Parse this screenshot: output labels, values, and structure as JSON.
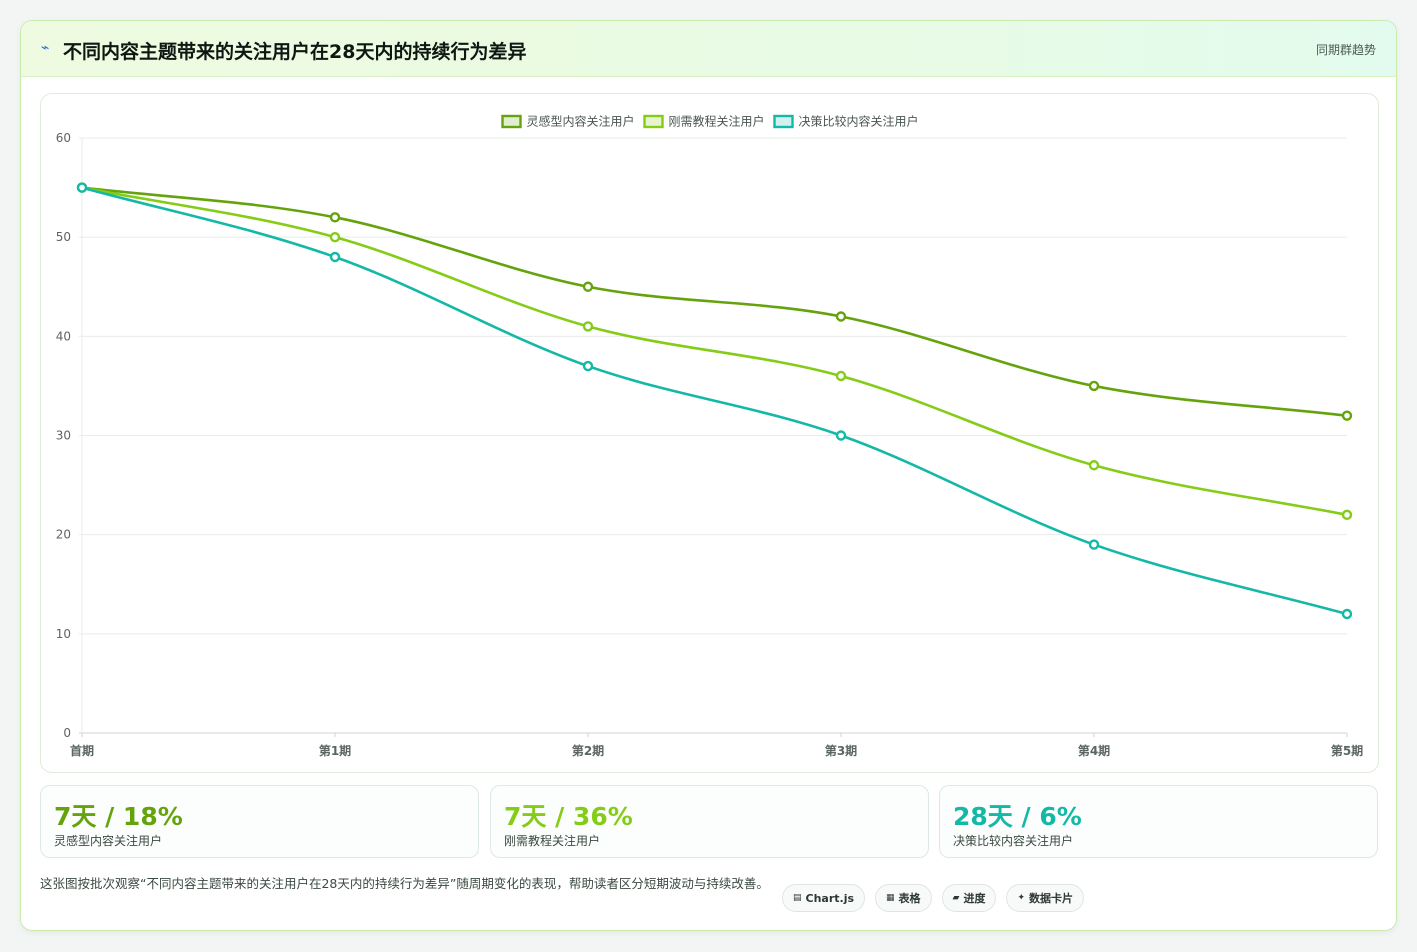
{
  "header": {
    "title_icon": "trend-spark-icon",
    "title_glyph": "⌁",
    "title": "不同内容主题带来的关注用户在28天内的持续行为差异",
    "tag": "同期群趋势"
  },
  "chart_data": {
    "type": "line",
    "categories": [
      "首期",
      "第1期",
      "第2期",
      "第3期",
      "第4期",
      "第5期"
    ],
    "series": [
      {
        "name": "灵感型内容关注用户",
        "color": "#65a30d",
        "values": [
          55,
          52,
          45,
          42,
          35,
          32
        ]
      },
      {
        "name": "刚需教程关注用户",
        "color": "#84cc16",
        "values": [
          55,
          50,
          41,
          36,
          27,
          22
        ]
      },
      {
        "name": "决策比较内容关注用户",
        "color": "#14b8a6",
        "values": [
          55,
          48,
          37,
          30,
          19,
          12
        ]
      }
    ],
    "yticks": [
      "0",
      "10",
      "20",
      "30",
      "40",
      "50",
      "60"
    ],
    "ylim": [
      0,
      60
    ],
    "grid": true,
    "legend": "top-center"
  },
  "stats": [
    {
      "value": "7天 / 18%",
      "label": "灵感型内容关注用户",
      "color": "#65a30d"
    },
    {
      "value": "7天 / 36%",
      "label": "刚需教程关注用户",
      "color": "#84cc16"
    },
    {
      "value": "28天 / 6%",
      "label": "决策比较内容关注用户",
      "color": "#14b8a6"
    }
  ],
  "footnote": "这张图按批次观察“不同内容主题带来的关注用户在28天内的持续行为差异”随周期变化的表现，帮助读者区分短期波动与持续改善。",
  "chips": [
    {
      "icon": "chart-icon",
      "glyph": "▤",
      "label": "Chart.js"
    },
    {
      "icon": "table-icon",
      "glyph": "▦",
      "label": "表格"
    },
    {
      "icon": "progress-icon",
      "glyph": "▰",
      "label": "进度"
    },
    {
      "icon": "sparkle-icon",
      "glyph": "✦",
      "label": "数据卡片"
    }
  ]
}
